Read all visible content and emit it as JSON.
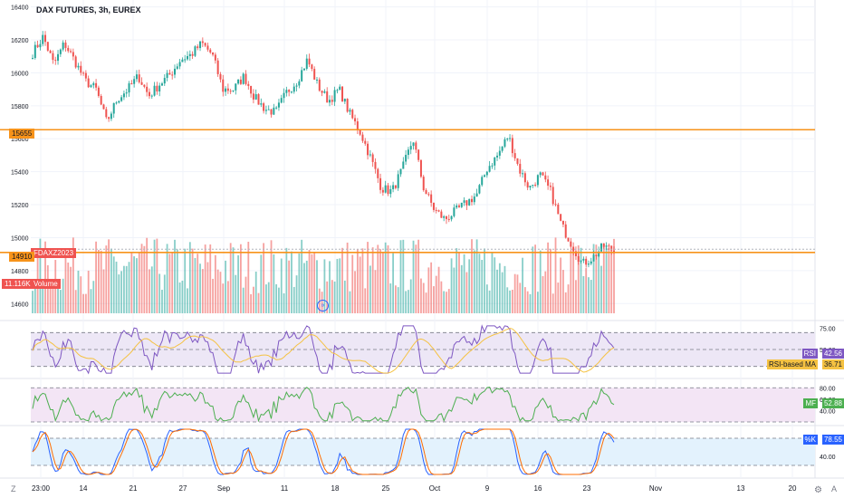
{
  "symbol": "DAX FUTURES, 3h, EUREX",
  "colors": {
    "up": "#26a69a",
    "down": "#ef5350",
    "level": "#f7931a",
    "rsi": "#7e57c2",
    "rsima": "#f5c242",
    "mfi": "#4caf50",
    "k": "#2962ff",
    "d": "#ff6d00"
  },
  "labels": {
    "fdax": "FDAXZ2023",
    "volume": "Volume",
    "volume_value": "11.116K",
    "level_upper": "15655",
    "level_lower": "14910",
    "rsi": "RSI",
    "rsi_value": "42.56",
    "rsi_ma": "RSI-based MA",
    "rsi_ma_value": "36.71",
    "mf": "MF",
    "mf_value": "52.88",
    "k": "%K",
    "k_value": "78.55",
    "bottom_left": "Z",
    "bottom_right": "A"
  },
  "chart_data": [
    {
      "type": "candlestick",
      "title": "DAX FUTURES, 3h, EUREX",
      "ylim": [
        14530,
        16420
      ],
      "yticks": [
        14600,
        14800,
        15000,
        15200,
        15400,
        15600,
        15800,
        16000,
        16200,
        16400
      ],
      "xticks": [
        "23:00",
        "14",
        "21",
        "27",
        "Sep",
        "11",
        "18",
        "25",
        "Oct",
        "9",
        "16",
        "23",
        "Nov",
        "13",
        "20"
      ],
      "horizontal_levels": [
        15655,
        14910
      ],
      "close_path": [
        {
          "date": "Aug 10",
          "close": 16120
        },
        {
          "date": "Aug 11",
          "close": 16220
        },
        {
          "date": "Aug 14",
          "close": 16050
        },
        {
          "date": "Aug 15",
          "close": 16180
        },
        {
          "date": "Aug 16",
          "close": 16070
        },
        {
          "date": "Aug 17",
          "close": 15950
        },
        {
          "date": "Aug 18",
          "close": 15900
        },
        {
          "date": "Aug 21",
          "close": 15700
        },
        {
          "date": "Aug 22",
          "close": 15840
        },
        {
          "date": "Aug 23",
          "close": 15900
        },
        {
          "date": "Aug 24",
          "close": 15980
        },
        {
          "date": "Aug 25",
          "close": 15860
        },
        {
          "date": "Aug 28",
          "close": 15930
        },
        {
          "date": "Aug 29",
          "close": 15990
        },
        {
          "date": "Aug 30",
          "close": 16080
        },
        {
          "date": "Aug 31",
          "close": 16110
        },
        {
          "date": "Sep 1",
          "close": 16180
        },
        {
          "date": "Sep 4",
          "close": 16110
        },
        {
          "date": "Sep 5",
          "close": 15900
        },
        {
          "date": "Sep 6",
          "close": 15900
        },
        {
          "date": "Sep 7",
          "close": 15980
        },
        {
          "date": "Sep 8",
          "close": 15850
        },
        {
          "date": "Sep 11",
          "close": 15780
        },
        {
          "date": "Sep 12",
          "close": 15760
        },
        {
          "date": "Sep 13",
          "close": 15880
        },
        {
          "date": "Sep 14",
          "close": 15950
        },
        {
          "date": "Sep 15",
          "close": 16080
        },
        {
          "date": "Sep 18",
          "close": 15920
        },
        {
          "date": "Sep 19",
          "close": 15830
        },
        {
          "date": "Sep 20",
          "close": 15900
        },
        {
          "date": "Sep 21",
          "close": 15750
        },
        {
          "date": "Sep 22",
          "close": 15640
        },
        {
          "date": "Sep 25",
          "close": 15480
        },
        {
          "date": "Sep 26",
          "close": 15300
        },
        {
          "date": "Sep 27",
          "close": 15280
        },
        {
          "date": "Sep 28",
          "close": 15420
        },
        {
          "date": "Sep 29",
          "close": 15600
        },
        {
          "date": "Oct 2",
          "close": 15300
        },
        {
          "date": "Oct 3",
          "close": 15170
        },
        {
          "date": "Oct 4",
          "close": 15110
        },
        {
          "date": "Oct 5",
          "close": 15160
        },
        {
          "date": "Oct 6",
          "close": 15210
        },
        {
          "date": "Oct 9",
          "close": 15260
        },
        {
          "date": "Oct 10",
          "close": 15420
        },
        {
          "date": "Oct 11",
          "close": 15500
        },
        {
          "date": "Oct 12",
          "close": 15620
        },
        {
          "date": "Oct 13",
          "close": 15420
        },
        {
          "date": "Oct 16",
          "close": 15300
        },
        {
          "date": "Oct 17",
          "close": 15380
        },
        {
          "date": "Oct 18",
          "close": 15280
        },
        {
          "date": "Oct 19",
          "close": 15080
        },
        {
          "date": "Oct 20",
          "close": 14960
        },
        {
          "date": "Oct 23",
          "close": 14840
        },
        {
          "date": "Oct 24",
          "close": 14880
        },
        {
          "date": "Oct 25",
          "close": 14950
        },
        {
          "date": "Oct 26",
          "close": 14920
        }
      ]
    },
    {
      "type": "line",
      "name": "RSI",
      "ylim": [
        20,
        80
      ],
      "yticks": [
        75.0,
        50.0
      ],
      "bands": [
        70,
        50,
        30
      ],
      "last": 42.56,
      "ma_last": 36.71
    },
    {
      "type": "line",
      "name": "MF",
      "ylim": [
        20,
        90
      ],
      "yticks": [
        80.0,
        60.0,
        40.0
      ],
      "bands": [
        80,
        20
      ],
      "last": 52.88
    },
    {
      "type": "line",
      "name": "%K",
      "ylim": [
        0,
        100
      ],
      "yticks": [
        40.0
      ],
      "bands": [
        80,
        20
      ],
      "last": 78.55
    }
  ]
}
